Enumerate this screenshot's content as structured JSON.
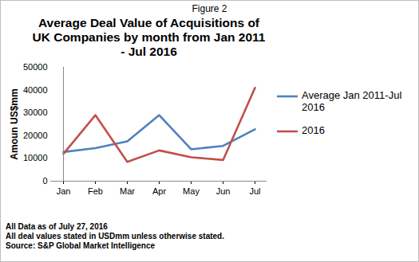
{
  "chart_data": {
    "type": "line",
    "figure_label": "Figure 2",
    "title": "Average Deal Value of Acquisitions of UK Companies by month from Jan 2011 - Jul 2016",
    "y_label": "Amoun US$mm",
    "categories": [
      "Jan",
      "Feb",
      "Mar",
      "Apr",
      "May",
      "Jun",
      "Jul"
    ],
    "series": [
      {
        "name": "Average Jan 2011-Jul 2016",
        "color": "#4f81bd",
        "values": [
          12800,
          14500,
          17500,
          29000,
          14000,
          15500,
          22800
        ]
      },
      {
        "name": "2016",
        "color": "#c0504d",
        "values": [
          12000,
          29000,
          8500,
          13500,
          10500,
          9300,
          41000
        ]
      }
    ],
    "ylim": [
      0,
      50000
    ],
    "yticks": [
      0,
      10000,
      20000,
      30000,
      40000,
      50000
    ],
    "grid": false,
    "legend": "right",
    "annotations": [
      "All Data as of July 27, 2016",
      "All deal values stated in USDmm unless otherwise stated.",
      "Source: S&P Global Market Intelligence"
    ]
  }
}
